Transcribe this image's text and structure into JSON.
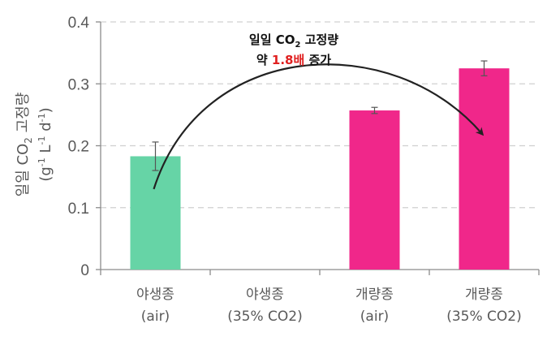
{
  "chart_data": {
    "type": "bar",
    "categories": [
      [
        "야생종",
        "(air)"
      ],
      [
        "야생종",
        "(35% CO2)"
      ],
      [
        "개량종",
        "(air)"
      ],
      [
        "개량종",
        "(35% CO2)"
      ]
    ],
    "values": [
      0.183,
      null,
      0.257,
      0.325
    ],
    "errors": [
      0.023,
      null,
      0.005,
      0.012
    ],
    "bar_colors": [
      "#66d4a6",
      null,
      "#f0278a",
      "#f0278a"
    ],
    "ylim": [
      0,
      0.4
    ],
    "yticks": [
      "0",
      "0.1",
      "0.2",
      "0.3",
      "0.4"
    ],
    "ytick_values": [
      0,
      0.1,
      0.2,
      0.3,
      0.4
    ],
    "ylabel": {
      "line1_prefix": "일일 CO",
      "line1_sub": "2",
      "line1_suffix": " 고정량",
      "line2_open": "(g",
      "line2_sup1": "-1",
      "line2_mid": " L",
      "line2_sup2": "-1",
      "line2_d": " d",
      "line2_sup3": "-1",
      "line2_close": ")"
    },
    "xlabel": "",
    "grid": "dashed horizontal",
    "annotation": {
      "line1_prefix": "일일 CO",
      "line1_sub": "2",
      "line1_suffix": " 고정량",
      "line2_prefix": "약 ",
      "line2_highlight": "1.8배",
      "line2_suffix": " 증가",
      "highlight_color": "#e02020"
    },
    "arrow_from_value": 0.13,
    "arrow_to_value": 0.22
  }
}
